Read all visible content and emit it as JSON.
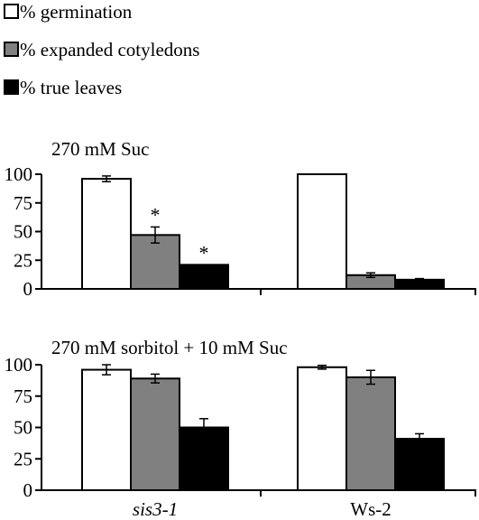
{
  "legend": [
    {
      "label": "% germination",
      "color": "#ffffff"
    },
    {
      "label": "% expanded cotyledons",
      "color": "#808080"
    },
    {
      "label": "% true leaves",
      "color": "#000000"
    }
  ],
  "chart_data": [
    {
      "type": "bar",
      "title": "270 mM Suc",
      "categories": [
        "sis3-1",
        "Ws-2"
      ],
      "ylim": [
        0,
        100
      ],
      "yticks": [
        "0",
        "25",
        "50",
        "75",
        "100"
      ],
      "grid": false,
      "series": [
        {
          "name": "% germination",
          "values": [
            96,
            100
          ],
          "errors": [
            2.5,
            0
          ]
        },
        {
          "name": "% expanded cotyledons",
          "values": [
            47,
            12
          ],
          "errors": [
            7,
            2
          ]
        },
        {
          "name": "% true leaves",
          "values": [
            21,
            8
          ],
          "errors": [
            0,
            1
          ]
        }
      ],
      "annotations": [
        {
          "series": 1,
          "category": 0,
          "text": "*"
        },
        {
          "series": 2,
          "category": 0,
          "text": "*"
        }
      ]
    },
    {
      "type": "bar",
      "title": "270 mM sorbitol + 10 mM Suc",
      "categories": [
        "sis3-1",
        "Ws-2"
      ],
      "ylim": [
        0,
        100
      ],
      "yticks": [
        "0",
        "25",
        "50",
        "75",
        "100"
      ],
      "grid": false,
      "series": [
        {
          "name": "% germination",
          "values": [
            96,
            98
          ],
          "errors": [
            4,
            1.5
          ]
        },
        {
          "name": "% expanded cotyledons",
          "values": [
            89,
            90
          ],
          "errors": [
            3.5,
            5.5
          ]
        },
        {
          "name": "% true leaves",
          "values": [
            50,
            41
          ],
          "errors": [
            7,
            4
          ]
        }
      ],
      "annotations": []
    }
  ]
}
